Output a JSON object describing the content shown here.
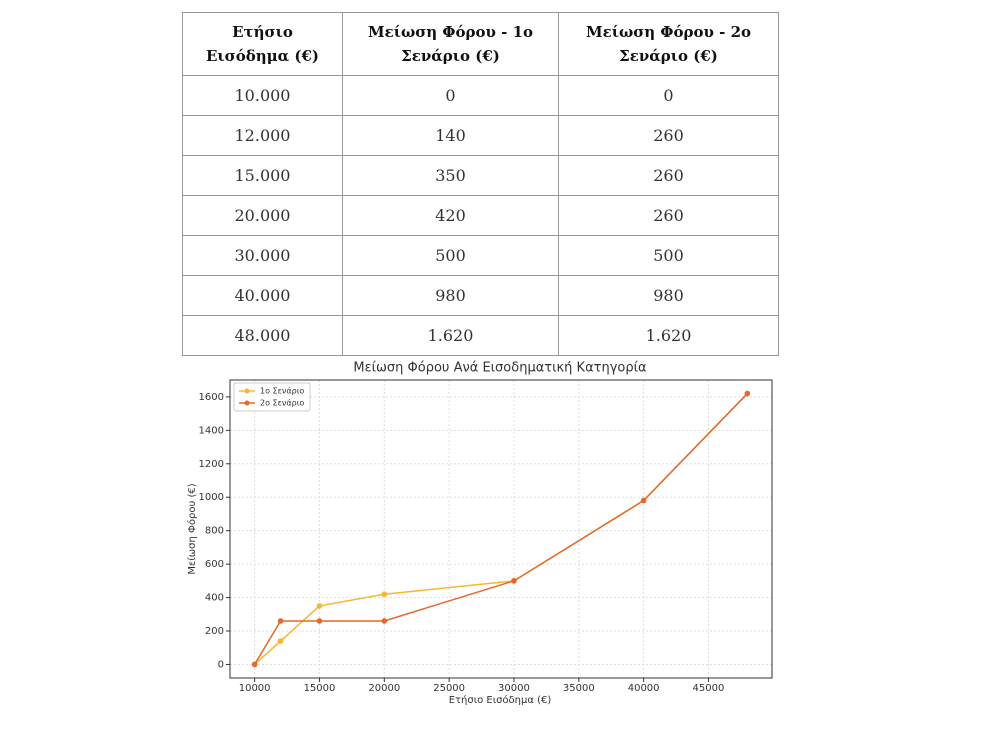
{
  "table": {
    "header": [
      "Ετήσιο Εισόδημα (€)",
      "Μείωση Φόρου - 1ο Σενάριο (€)",
      "Μείωση Φόρου - 2ο Σενάριο (€)"
    ],
    "rows": [
      [
        "10.000",
        "0",
        "0"
      ],
      [
        "12.000",
        "140",
        "260"
      ],
      [
        "15.000",
        "350",
        "260"
      ],
      [
        "20.000",
        "420",
        "260"
      ],
      [
        "30.000",
        "500",
        "500"
      ],
      [
        "40.000",
        "980",
        "980"
      ],
      [
        "48.000",
        "1.620",
        "1.620"
      ]
    ]
  },
  "chart_data": {
    "type": "line",
    "title": "Μείωση Φόρου Ανά Εισοδηματική Κατηγορία",
    "xlabel": "Ετήσιο Εισόδημα (€)",
    "ylabel": "Μείωση Φόρου (€)",
    "x": [
      10000,
      12000,
      15000,
      20000,
      30000,
      40000,
      48000
    ],
    "series": [
      {
        "name": "1ο Σενάριο",
        "color": "#f5b731",
        "values": [
          0,
          140,
          350,
          420,
          500,
          980,
          1620
        ]
      },
      {
        "name": "2ο Σενάριο",
        "color": "#e4692f",
        "values": [
          0,
          260,
          260,
          260,
          500,
          980,
          1620
        ]
      }
    ],
    "xlim": [
      8100,
      49900
    ],
    "xticks": [
      10000,
      15000,
      20000,
      25000,
      30000,
      35000,
      40000,
      45000
    ],
    "ylim": [
      -81,
      1701
    ],
    "yticks": [
      0,
      200,
      400,
      600,
      800,
      1000,
      1200,
      1400,
      1600
    ],
    "grid": true,
    "legend": "upper left"
  }
}
